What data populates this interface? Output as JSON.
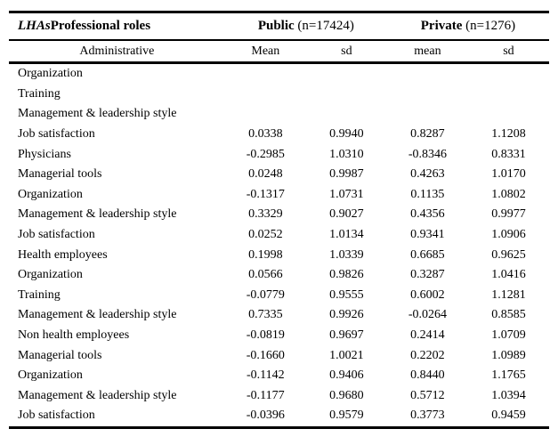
{
  "page": {
    "background": "#ffffff",
    "text_color": "#000000",
    "rule_color": "#000000"
  },
  "table": {
    "title_italic": "LHAs",
    "title_bold": "Professional roles",
    "groups": [
      {
        "name": "Public",
        "n_suffix": " (n=17424)"
      },
      {
        "name": "Private",
        "n_suffix": " (n=1276)"
      }
    ],
    "subheader_label": "Administrative",
    "columns": [
      "Mean",
      "sd",
      "mean",
      "sd"
    ],
    "rows": [
      {
        "label": "Organization",
        "values": [
          "",
          "",
          "",
          ""
        ]
      },
      {
        "label": "Training",
        "values": [
          "",
          "",
          "",
          ""
        ]
      },
      {
        "label": "Management & leadership style",
        "values": [
          "",
          "",
          "",
          ""
        ]
      },
      {
        "label": "Job satisfaction",
        "values": [
          "0.0338",
          "0.9940",
          "0.8287",
          "1.1208"
        ]
      },
      {
        "label": "Physicians",
        "values": [
          "-0.2985",
          "1.0310",
          "-0.8346",
          "0.8331"
        ]
      },
      {
        "label": "Managerial tools",
        "values": [
          "0.0248",
          "0.9987",
          "0.4263",
          "1.0170"
        ]
      },
      {
        "label": "Organization",
        "values": [
          "-0.1317",
          "1.0731",
          "0.1135",
          "1.0802"
        ]
      },
      {
        "label": "Management & leadership style",
        "values": [
          "0.3329",
          "0.9027",
          "0.4356",
          "0.9977"
        ]
      },
      {
        "label": "Job satisfaction",
        "values": [
          "0.0252",
          "1.0134",
          "0.9341",
          "1.0906"
        ]
      },
      {
        "label": "Health employees",
        "values": [
          "0.1998",
          "1.0339",
          "0.6685",
          "0.9625"
        ]
      },
      {
        "label": "Organization",
        "values": [
          "0.0566",
          "0.9826",
          "0.3287",
          "1.0416"
        ]
      },
      {
        "label": "Training",
        "values": [
          "-0.0779",
          "0.9555",
          "0.6002",
          "1.1281"
        ]
      },
      {
        "label": "Management & leadership style",
        "values": [
          "0.7335",
          "0.9926",
          "-0.0264",
          "0.8585"
        ]
      },
      {
        "label": "Non health employees",
        "values": [
          "-0.0819",
          "0.9697",
          "0.2414",
          "1.0709"
        ]
      },
      {
        "label": "Managerial tools",
        "values": [
          "-0.1660",
          "1.0021",
          "0.2202",
          "1.0989"
        ]
      },
      {
        "label": "Organization",
        "values": [
          "-0.1142",
          "0.9406",
          "0.8440",
          "1.1765"
        ]
      },
      {
        "label": "Management & leadership style",
        "values": [
          "-0.1177",
          "0.9680",
          "0.5712",
          "1.0394"
        ]
      },
      {
        "label": "Job satisfaction",
        "values": [
          "-0.0396",
          "0.9579",
          "0.3773",
          "0.9459"
        ]
      }
    ]
  }
}
